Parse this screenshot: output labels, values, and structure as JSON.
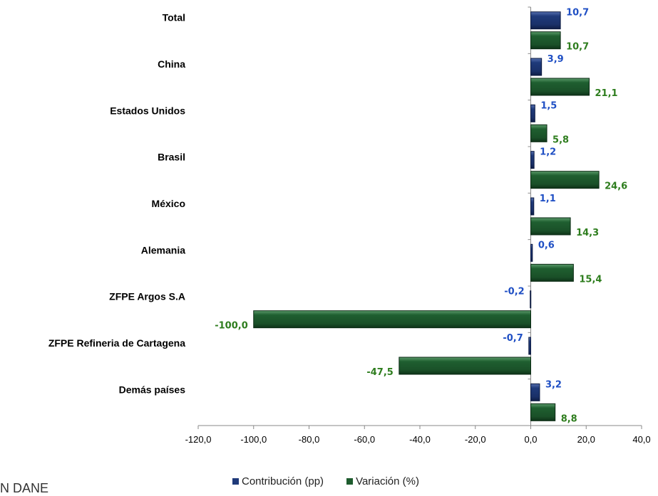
{
  "chart_data": {
    "type": "bar",
    "orientation": "horizontal",
    "categories": [
      "Total",
      "China",
      "Estados Unidos",
      "Brasil",
      "México",
      "Alemania",
      "ZFPE Argos S.A",
      "ZFPE Refineria de Cartagena",
      "Demás países"
    ],
    "series": [
      {
        "name": "Contribución (pp)",
        "color": "#1F3A7A",
        "label_color": "#1F4FC4",
        "values": [
          10.7,
          3.9,
          1.5,
          1.2,
          1.1,
          0.6,
          -0.2,
          -0.7,
          3.2
        ],
        "labels": [
          "10,7",
          "3,9",
          "1,5",
          "1,2",
          "1,1",
          "0,6",
          "-0,2",
          "-0,7",
          "3,2"
        ]
      },
      {
        "name": "Variación (%)",
        "color": "#1E5C2E",
        "label_color": "#2E7D1E",
        "values": [
          10.7,
          21.1,
          5.8,
          24.6,
          14.3,
          15.4,
          -100.0,
          -47.5,
          8.8
        ],
        "labels": [
          "10,7",
          "21,1",
          "5,8",
          "24,6",
          "14,3",
          "15,4",
          "-100,0",
          "-47,5",
          "8,8"
        ]
      }
    ],
    "xlim": [
      -120,
      40
    ],
    "x_ticks": [
      -120,
      -100,
      -80,
      -60,
      -40,
      -20,
      0,
      20,
      40
    ],
    "x_tick_labels": [
      "-120,0",
      "-100,0",
      "-80,0",
      "-60,0",
      "-40,0",
      "-20,0",
      "0,0",
      "20,0",
      "40,0"
    ],
    "grid": false,
    "legend_position": "bottom"
  },
  "source_text": "N DANE"
}
